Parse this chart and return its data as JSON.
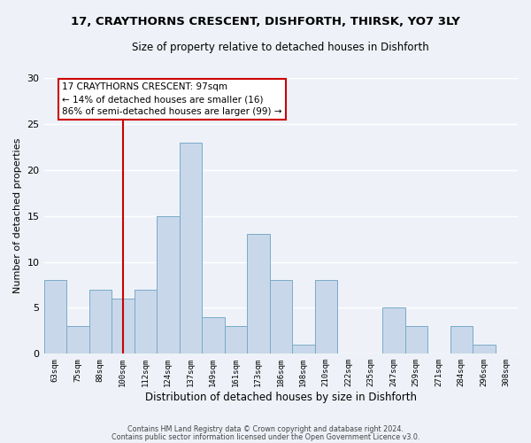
{
  "title": "17, CRAYTHORNS CRESCENT, DISHFORTH, THIRSK, YO7 3LY",
  "subtitle": "Size of property relative to detached houses in Dishforth",
  "xlabel": "Distribution of detached houses by size in Dishforth",
  "ylabel": "Number of detached properties",
  "bar_labels": [
    "63sqm",
    "75sqm",
    "88sqm",
    "100sqm",
    "112sqm",
    "124sqm",
    "137sqm",
    "149sqm",
    "161sqm",
    "173sqm",
    "186sqm",
    "198sqm",
    "210sqm",
    "222sqm",
    "235sqm",
    "247sqm",
    "259sqm",
    "271sqm",
    "284sqm",
    "296sqm",
    "308sqm"
  ],
  "bar_values": [
    8,
    3,
    7,
    6,
    7,
    15,
    23,
    4,
    3,
    13,
    8,
    1,
    8,
    0,
    0,
    5,
    3,
    0,
    3,
    1,
    0
  ],
  "bar_color": "#c8d8ea",
  "bar_edge_color": "#7aaac8",
  "vline_x_index": 3,
  "vline_color": "#cc0000",
  "annotation_title": "17 CRAYTHORNS CRESCENT: 97sqm",
  "annotation_line1": "← 14% of detached houses are smaller (16)",
  "annotation_line2": "86% of semi-detached houses are larger (99) →",
  "annotation_box_facecolor": "#ffffff",
  "annotation_box_edgecolor": "#cc0000",
  "ylim": [
    0,
    30
  ],
  "yticks": [
    0,
    5,
    10,
    15,
    20,
    25,
    30
  ],
  "bg_color": "#eef2f8",
  "grid_color": "#ffffff",
  "footer_line1": "Contains HM Land Registry data © Crown copyright and database right 2024.",
  "footer_line2": "Contains public sector information licensed under the Open Government Licence v3.0."
}
